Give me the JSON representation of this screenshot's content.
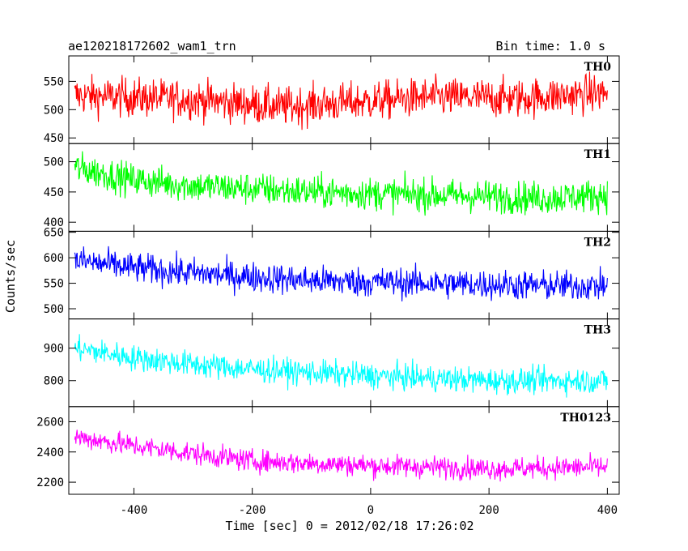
{
  "header": {
    "title": "ae120218172602_wam1_trn",
    "bin_time": "Bin time: 1.0 s"
  },
  "axes": {
    "xlabel": "Time [sec] 0 = 2012/02/18 17:26:02",
    "ylabel": "Counts/sec"
  },
  "chart_data": {
    "type": "line",
    "title": "ae120218172602_wam1_trn",
    "xlabel": "Time [sec] 0 = 2012/02/18 17:26:02",
    "ylabel": "Counts/sec",
    "xlim": [
      -510,
      420
    ],
    "xticks": [
      -400,
      -200,
      0,
      200,
      400
    ],
    "x_start": -500,
    "x_end": 400,
    "x_step": 1.0,
    "panels": [
      {
        "name": "TH0",
        "color": "#ff0000",
        "ylim": [
          440,
          595
        ],
        "yticks": [
          450,
          500,
          550
        ],
        "trend": [
          [
            -500,
            525
          ],
          [
            -300,
            518
          ],
          [
            -150,
            505
          ],
          [
            0,
            515
          ],
          [
            100,
            522
          ],
          [
            250,
            520
          ],
          [
            400,
            530
          ]
        ],
        "noise": 28,
        "observed_range": [
          445,
          595
        ]
      },
      {
        "name": "TH1",
        "color": "#00ff00",
        "ylim": [
          385,
          530
        ],
        "yticks": [
          400,
          450,
          500
        ],
        "trend": [
          [
            -500,
            490
          ],
          [
            -400,
            470
          ],
          [
            -300,
            460
          ],
          [
            -100,
            450
          ],
          [
            100,
            445
          ],
          [
            300,
            440
          ],
          [
            400,
            445
          ]
        ],
        "noise": 22,
        "observed_range": [
          390,
          525
        ]
      },
      {
        "name": "TH2",
        "color": "#0000ff",
        "ylim": [
          480,
          652
        ],
        "yticks": [
          500,
          550,
          600,
          650
        ],
        "trend": [
          [
            -500,
            595
          ],
          [
            -400,
            580
          ],
          [
            -300,
            570
          ],
          [
            -100,
            555
          ],
          [
            100,
            550
          ],
          [
            300,
            545
          ],
          [
            400,
            545
          ]
        ],
        "noise": 24,
        "observed_range": [
          485,
          650
        ]
      },
      {
        "name": "TH3",
        "color": "#00ffff",
        "ylim": [
          720,
          990
        ],
        "yticks": [
          800,
          900
        ],
        "trend": [
          [
            -500,
            900
          ],
          [
            -400,
            870
          ],
          [
            -300,
            850
          ],
          [
            -200,
            835
          ],
          [
            0,
            815
          ],
          [
            200,
            800
          ],
          [
            400,
            800
          ]
        ],
        "noise": 32,
        "observed_range": [
          740,
          985
        ]
      },
      {
        "name": "TH0123",
        "color": "#ff00ff",
        "ylim": [
          2120,
          2700
        ],
        "yticks": [
          2200,
          2400,
          2600
        ],
        "trend": [
          [
            -500,
            2500
          ],
          [
            -400,
            2440
          ],
          [
            -300,
            2390
          ],
          [
            -200,
            2340
          ],
          [
            0,
            2310
          ],
          [
            200,
            2290
          ],
          [
            400,
            2300
          ]
        ],
        "noise": 60,
        "observed_range": [
          2140,
          2700
        ]
      }
    ]
  }
}
